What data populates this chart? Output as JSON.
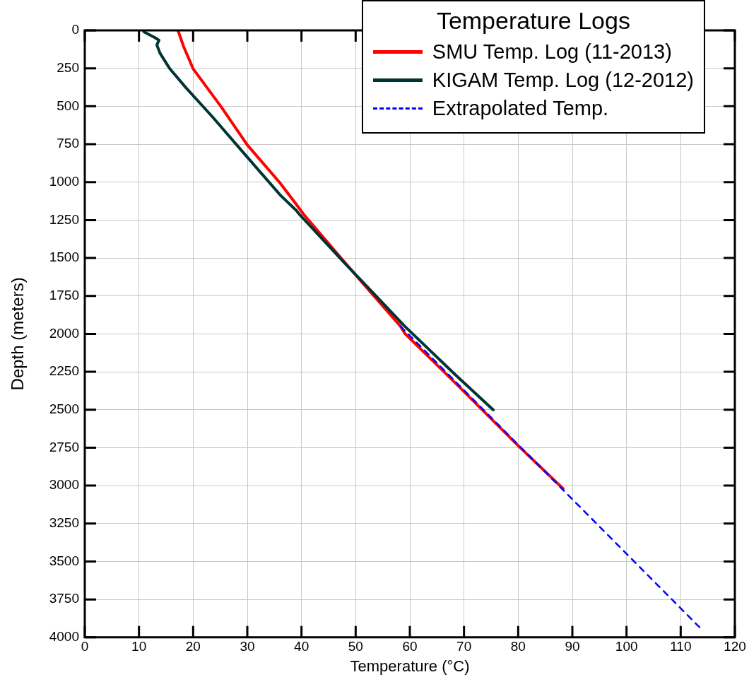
{
  "chart_data": {
    "type": "line",
    "xlabel": "Temperature (°C)",
    "ylabel": "Depth (meters)",
    "legend_title": "Temperature Logs",
    "legend": "top right",
    "grid": true,
    "marker": "none",
    "line_style": "solid",
    "xlim": [
      0,
      120
    ],
    "xticks": [
      0,
      10,
      20,
      30,
      40,
      50,
      60,
      70,
      80,
      90,
      100,
      110,
      120
    ],
    "ylim": [
      4000,
      0
    ],
    "yticks": [
      0,
      250,
      500,
      750,
      1000,
      1250,
      1500,
      1750,
      2000,
      2250,
      2500,
      2750,
      3000,
      3250,
      3500,
      3750,
      4000
    ],
    "series": [
      {
        "name": "SMU Temp. Log (11-2013)",
        "color": "#ff0000",
        "x": [
          17.2,
          18.3,
          20.0,
          25.2,
          30.0,
          36.1,
          39.1,
          40.4,
          48.3,
          58.3,
          59.1,
          68.1,
          80.0,
          88.3
        ],
        "values": [
          0,
          112,
          253,
          505,
          755,
          1008,
          1149,
          1212,
          1542,
          1951,
          1998,
          2313,
          2737,
          3020
        ]
      },
      {
        "name": "KIGAM Temp. Log (12-2012)",
        "color": "#003333",
        "x": [
          10.9,
          13.0,
          13.7,
          13.3,
          13.9,
          15.7,
          18.7,
          23.5,
          29.6,
          36.1,
          39.1,
          39.6,
          47.8,
          59.1,
          68.3,
          75.4
        ],
        "values": [
          9,
          49,
          65,
          96,
          151,
          253,
          379,
          567,
          819,
          1086,
          1189,
          1212,
          1527,
          1951,
          2266,
          2501
        ]
      },
      {
        "name": "Extrapolated Temp.",
        "color": "#0000ff",
        "line_style": "dashed",
        "x": [
          58.3,
          114.1
        ],
        "values": [
          1951,
          3956
        ]
      }
    ]
  }
}
